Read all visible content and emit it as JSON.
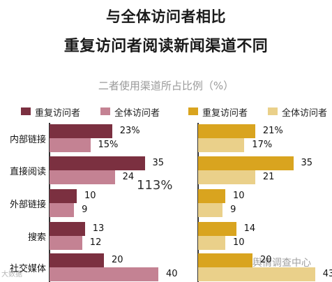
{
  "title_line1": "与全体访问者相比",
  "title_line2": "重复访问者阅读新闻渠道不同",
  "subtitle": "二者使用渠道所占比例（%）",
  "colors": {
    "left_repeat": "#7b3040",
    "left_all": "#c48293",
    "right_repeat": "#d9a41f",
    "right_all": "#ead08a"
  },
  "annotation": "113%",
  "watermark_left": "大数据",
  "watermark_right": "环球舆情调查中心",
  "chart_data": [
    {
      "type": "bar",
      "orientation": "horizontal",
      "categories": [
        "内部链接",
        "直接阅读",
        "外部链接",
        "搜索",
        "社交媒体"
      ],
      "series": [
        {
          "name": "重复访问者",
          "values": [
            23,
            35,
            10,
            13,
            20
          ]
        },
        {
          "name": "全体访问者",
          "values": [
            15,
            24,
            9,
            12,
            40
          ]
        }
      ],
      "value_labels": {
        "重复访问者": [
          "23%",
          "35",
          "10",
          "13",
          "20"
        ],
        "全体访问者": [
          "15%",
          "24",
          "9",
          "12",
          "40"
        ]
      },
      "xlim": [
        0,
        45
      ],
      "legend": "top"
    },
    {
      "type": "bar",
      "orientation": "horizontal",
      "categories": [
        "内部链接",
        "直接阅读",
        "外部链接",
        "搜索",
        "社交媒体"
      ],
      "series": [
        {
          "name": "重复访问者",
          "values": [
            21,
            35,
            10,
            14,
            20
          ]
        },
        {
          "name": "全体访问者",
          "values": [
            17,
            21,
            9,
            10,
            43
          ]
        }
      ],
      "value_labels": {
        "重复访问者": [
          "21%",
          "35",
          "10",
          "14",
          "20"
        ],
        "全体访问者": [
          "17%",
          "21",
          "9",
          "10",
          "43"
        ]
      },
      "xlim": [
        0,
        45
      ],
      "legend": "top"
    }
  ]
}
